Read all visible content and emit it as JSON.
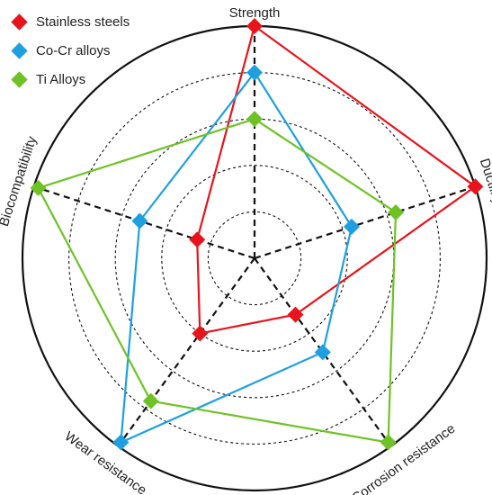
{
  "chart_data": {
    "type": "radar",
    "axes": [
      "Strength",
      "Ductility",
      "Corrosion resistance",
      "Wear resistance",
      "Biocompatibility"
    ],
    "rings": 5,
    "max": 5,
    "legend_position": "top-left",
    "series": [
      {
        "name": "Stainless steels",
        "color": "#e8141c",
        "values": [
          5,
          5,
          1.5,
          2.0,
          1.3
        ]
      },
      {
        "name": "Co-Cr alloys",
        "color": "#1ea0e0",
        "values": [
          4,
          2.2,
          2.5,
          4.9,
          2.6
        ]
      },
      {
        "name": "Ti Alloys",
        "color": "#6ec226",
        "values": [
          3,
          3.2,
          4.9,
          3.8,
          4.9
        ]
      }
    ]
  }
}
